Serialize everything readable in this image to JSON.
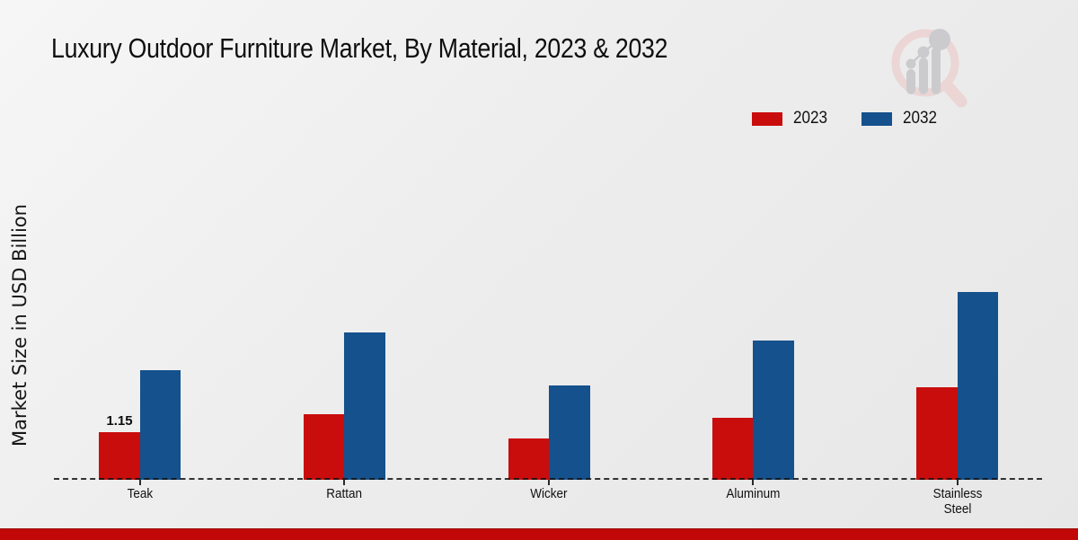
{
  "title": "Luxury Outdoor Furniture Market, By Material, 2023 & 2032",
  "ylabel": "Market Size in USD Billion",
  "watermark_name": "market-research-future-logo",
  "colors": {
    "series_2023": "#c90d0d",
    "series_2032": "#15518c",
    "baseline": "#1a1a1a",
    "bottom_band": "#c10707",
    "background": "#eeeeee"
  },
  "chart_data": {
    "type": "bar",
    "title": "Luxury Outdoor Furniture Market, By Material, 2023 & 2032",
    "categories": [
      "Teak",
      "Rattan",
      "Wicker",
      "Aluminum",
      "Stainless Steel"
    ],
    "series": [
      {
        "name": "2023",
        "color": "#c90d0d",
        "values": [
          1.15,
          1.58,
          1.0,
          1.5,
          2.24
        ]
      },
      {
        "name": "2032",
        "color": "#15518c",
        "values": [
          2.65,
          3.56,
          2.28,
          3.36,
          4.53
        ]
      }
    ],
    "annotations": [
      {
        "series": "2023",
        "category": "Teak",
        "text": "1.15"
      }
    ],
    "xlabel": "",
    "ylabel": "Market Size in USD Billion",
    "ylim": [
      0,
      5
    ],
    "grid": false,
    "y_axis_ticks_visible": false,
    "legend_position": "top-right",
    "baseline_style": "dashed"
  }
}
